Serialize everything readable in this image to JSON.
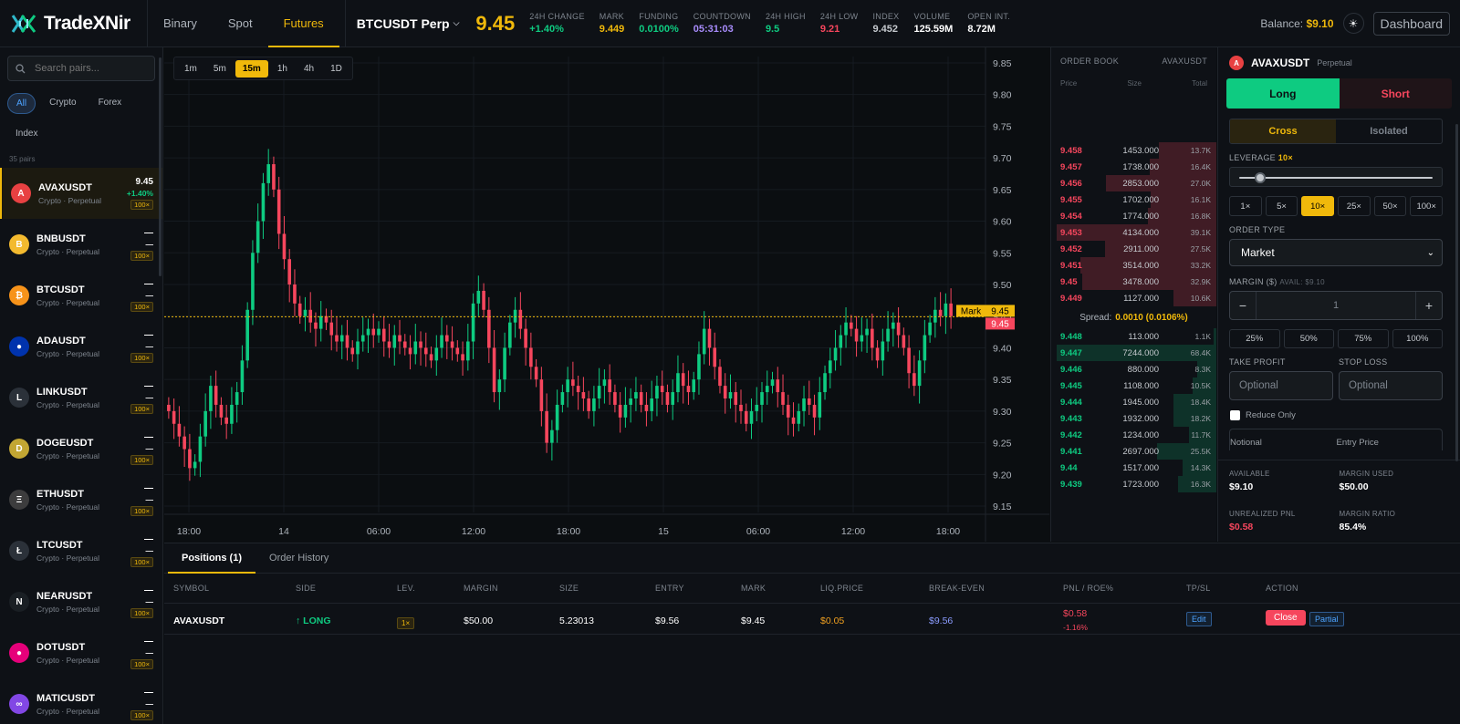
{
  "brand": {
    "name": "TradeXNir"
  },
  "nav": {
    "tabs": [
      {
        "label": "Binary"
      },
      {
        "label": "Spot"
      },
      {
        "label": "Futures"
      }
    ],
    "active": "Futures"
  },
  "ticker": {
    "pair": "BTCUSDT Perp",
    "price": "9.45",
    "stats": [
      {
        "key": "24H CHANGE",
        "value": "+1.40%",
        "color": "#0ecb81"
      },
      {
        "key": "MARK",
        "value": "9.449",
        "color": "#f0b90b"
      },
      {
        "key": "FUNDING",
        "value": "0.0100%",
        "color": "#0ecb81"
      },
      {
        "key": "COUNTDOWN",
        "value": "05:31:03",
        "color": "#a78bfa"
      },
      {
        "key": "24H HIGH",
        "value": "9.5",
        "color": "#0ecb81"
      },
      {
        "key": "24H LOW",
        "value": "9.21",
        "color": "#f6465d"
      },
      {
        "key": "INDEX",
        "value": "9.452",
        "color": "#c5c9ce"
      },
      {
        "key": "VOLUME",
        "value": "125.59M",
        "color": "#ffffff"
      },
      {
        "key": "OPEN INT.",
        "value": "8.72M",
        "color": "#ffffff"
      }
    ]
  },
  "account": {
    "balance_label": "Balance:",
    "balance": "$9.10",
    "dashboard": "Dashboard"
  },
  "sidebar": {
    "search_placeholder": "Search pairs...",
    "filters": [
      "All",
      "Crypto",
      "Forex",
      "Index"
    ],
    "count": "35 pairs",
    "pairs": [
      {
        "name": "AVAXUSDT",
        "sub": "Crypto · Perpetual",
        "price": "9.45",
        "change": "+1.40%",
        "lev": "100×",
        "icon": "avax-icon",
        "color": "#e84142",
        "glyph": "A"
      },
      {
        "name": "BNBUSDT",
        "sub": "Crypto · Perpetual",
        "price": "—",
        "change": "—",
        "lev": "100×",
        "icon": "bnb-icon",
        "color": "#f3ba2f",
        "glyph": "B"
      },
      {
        "name": "BTCUSDT",
        "sub": "Crypto · Perpetual",
        "price": "—",
        "change": "—",
        "lev": "100×",
        "icon": "btc-icon",
        "color": "#f7931a",
        "glyph": "₿"
      },
      {
        "name": "ADAUSDT",
        "sub": "Crypto · Perpetual",
        "price": "—",
        "change": "—",
        "lev": "100×",
        "icon": "ada-icon",
        "color": "#0033ad",
        "glyph": "●"
      },
      {
        "name": "LINKUSDT",
        "sub": "Crypto · Perpetual",
        "price": "—",
        "change": "—",
        "lev": "100×",
        "icon": "link-icon",
        "color": "#2b3139",
        "glyph": "L"
      },
      {
        "name": "DOGEUSDT",
        "sub": "Crypto · Perpetual",
        "price": "—",
        "change": "—",
        "lev": "100×",
        "icon": "doge-icon",
        "color": "#c2a633",
        "glyph": "D"
      },
      {
        "name": "ETHUSDT",
        "sub": "Crypto · Perpetual",
        "price": "—",
        "change": "—",
        "lev": "100×",
        "icon": "eth-icon",
        "color": "#3c3c3d",
        "glyph": "Ξ"
      },
      {
        "name": "LTCUSDT",
        "sub": "Crypto · Perpetual",
        "price": "—",
        "change": "—",
        "lev": "100×",
        "icon": "ltc-icon",
        "color": "#2b3139",
        "glyph": "Ł"
      },
      {
        "name": "NEARUSDT",
        "sub": "Crypto · Perpetual",
        "price": "—",
        "change": "—",
        "lev": "100×",
        "icon": "near-icon",
        "color": "#1a1f24",
        "glyph": "N"
      },
      {
        "name": "DOTUSDT",
        "sub": "Crypto · Perpetual",
        "price": "—",
        "change": "—",
        "lev": "100×",
        "icon": "dot-icon",
        "color": "#e6007a",
        "glyph": "●"
      },
      {
        "name": "MATICUSDT",
        "sub": "Crypto · Perpetual",
        "price": "—",
        "change": "—",
        "lev": "100×",
        "icon": "matic-icon",
        "color": "#8247e5",
        "glyph": "∞"
      }
    ]
  },
  "chart": {
    "timeframes": [
      "1m",
      "5m",
      "15m",
      "1h",
      "4h",
      "1D"
    ],
    "active_tf": "15m",
    "mark_label": "Mark",
    "mark_value": "9.45",
    "last_value": "9.45"
  },
  "chart_data": {
    "type": "candlestick",
    "y_ticks": [
      "9.85",
      "9.80",
      "9.75",
      "9.70",
      "9.65",
      "9.60",
      "9.55",
      "9.50",
      "9.45",
      "9.40",
      "9.35",
      "9.30",
      "9.25",
      "9.20",
      "9.15"
    ],
    "x_ticks": [
      "18:00",
      "14",
      "06:00",
      "12:00",
      "18:00",
      "15",
      "06:00",
      "12:00",
      "18:00"
    ],
    "ylim": [
      9.14,
      9.86
    ],
    "mark_price": 9.449,
    "up_color": "#0ecb81",
    "down_color": "#f6465d",
    "closes": [
      9.3,
      9.28,
      9.26,
      9.24,
      9.21,
      9.22,
      9.26,
      9.3,
      9.34,
      9.31,
      9.29,
      9.28,
      9.31,
      9.33,
      9.38,
      9.46,
      9.55,
      9.6,
      9.66,
      9.69,
      9.65,
      9.58,
      9.54,
      9.5,
      9.47,
      9.45,
      9.46,
      9.44,
      9.43,
      9.45,
      9.44,
      9.42,
      9.41,
      9.42,
      9.4,
      9.39,
      9.41,
      9.42,
      9.43,
      9.42,
      9.43,
      9.41,
      9.4,
      9.42,
      9.41,
      9.4,
      9.39,
      9.41,
      9.4,
      9.39,
      9.38,
      9.4,
      9.42,
      9.41,
      9.4,
      9.39,
      9.38,
      9.41,
      9.47,
      9.49,
      9.46,
      9.4,
      9.33,
      9.35,
      9.4,
      9.44,
      9.46,
      9.43,
      9.4,
      9.37,
      9.35,
      9.3,
      9.25,
      9.27,
      9.31,
      9.33,
      9.35,
      9.34,
      9.33,
      9.32,
      9.3,
      9.32,
      9.34,
      9.35,
      9.33,
      9.31,
      9.29,
      9.31,
      9.32,
      9.33,
      9.31,
      9.3,
      9.32,
      9.34,
      9.33,
      9.31,
      9.33,
      9.36,
      9.34,
      9.33,
      9.35,
      9.39,
      9.43,
      9.4,
      9.37,
      9.34,
      9.32,
      9.33,
      9.31,
      9.3,
      9.28,
      9.3,
      9.31,
      9.33,
      9.34,
      9.35,
      9.33,
      9.31,
      9.29,
      9.28,
      9.3,
      9.32,
      9.31,
      9.29,
      9.33,
      9.36,
      9.38,
      9.4,
      9.42,
      9.44,
      9.43,
      9.41,
      9.42,
      9.43,
      9.4,
      9.38,
      9.41,
      9.43,
      9.44,
      9.42,
      9.4,
      9.36,
      9.34,
      9.38,
      9.42,
      9.44,
      9.46,
      9.45,
      9.47,
      9.45
    ]
  },
  "orderbook": {
    "title": "ORDER BOOK",
    "pair": "AVAXUSDT",
    "cols": [
      "Price",
      "Size",
      "Total"
    ],
    "asks": [
      {
        "p": "9.458",
        "s": "1453.000",
        "t": "13.7K",
        "depth": 0.36
      },
      {
        "p": "9.457",
        "s": "1738.000",
        "t": "16.4K",
        "depth": 0.42
      },
      {
        "p": "9.456",
        "s": "2853.000",
        "t": "27.0K",
        "depth": 0.69
      },
      {
        "p": "9.455",
        "s": "1702.000",
        "t": "16.1K",
        "depth": 0.41
      },
      {
        "p": "9.454",
        "s": "1774.000",
        "t": "16.8K",
        "depth": 0.43
      },
      {
        "p": "9.453",
        "s": "4134.000",
        "t": "39.1K",
        "depth": 1.0
      },
      {
        "p": "9.452",
        "s": "2911.000",
        "t": "27.5K",
        "depth": 0.7
      },
      {
        "p": "9.451",
        "s": "3514.000",
        "t": "33.2K",
        "depth": 0.85
      },
      {
        "p": "9.45",
        "s": "3478.000",
        "t": "32.9K",
        "depth": 0.84
      },
      {
        "p": "9.449",
        "s": "1127.000",
        "t": "10.6K",
        "depth": 0.27
      }
    ],
    "spread_label": "Spread:",
    "spread": "0.0010 (0.0106%)",
    "bids": [
      {
        "p": "9.448",
        "s": "113.000",
        "t": "1.1K",
        "depth": 0.02
      },
      {
        "p": "9.447",
        "s": "7244.000",
        "t": "68.4K",
        "depth": 1.0
      },
      {
        "p": "9.446",
        "s": "880.000",
        "t": "8.3K",
        "depth": 0.12
      },
      {
        "p": "9.445",
        "s": "1108.000",
        "t": "10.5K",
        "depth": 0.15
      },
      {
        "p": "9.444",
        "s": "1945.000",
        "t": "18.4K",
        "depth": 0.27
      },
      {
        "p": "9.443",
        "s": "1932.000",
        "t": "18.2K",
        "depth": 0.27
      },
      {
        "p": "9.442",
        "s": "1234.000",
        "t": "11.7K",
        "depth": 0.17
      },
      {
        "p": "9.441",
        "s": "2697.000",
        "t": "25.5K",
        "depth": 0.37
      },
      {
        "p": "9.44",
        "s": "1517.000",
        "t": "14.3K",
        "depth": 0.21
      },
      {
        "p": "9.439",
        "s": "1723.000",
        "t": "16.3K",
        "depth": 0.24
      }
    ]
  },
  "trade": {
    "pair": "AVAXUSDT",
    "type": "Perpetual",
    "long": "Long",
    "short": "Short",
    "modes": [
      "Cross",
      "Isolated"
    ],
    "leverage_label": "LEVERAGE",
    "leverage_value": "10×",
    "leverage_fraction": 0.09,
    "levs": [
      "1×",
      "5×",
      "10×",
      "25×",
      "50×",
      "100×"
    ],
    "order_type_label": "ORDER TYPE",
    "order_type": "Market",
    "margin_label": "MARGIN ($)",
    "avail": "AVAIL: $9.10",
    "margin_value": "1",
    "pcts": [
      "25%",
      "50%",
      "75%",
      "100%"
    ],
    "tp_label": "TAKE PROFIT",
    "sl_label": "STOP LOSS",
    "tp_placeholder": "Optional",
    "sl_placeholder": "Optional",
    "reduce_only": "Reduce Only",
    "notional": "Notional",
    "entry_price": "Entry Price"
  },
  "accinfo": [
    {
      "k": "AVAILABLE",
      "v": "$9.10",
      "color": "#ffffff"
    },
    {
      "k": "MARGIN USED",
      "v": "$50.00",
      "color": "#ffffff"
    },
    {
      "k": "UNREALIZED PNL",
      "v": "$0.58",
      "color": "#f6465d"
    },
    {
      "k": "MARGIN RATIO",
      "v": "85.4%",
      "color": "#ffffff"
    }
  ],
  "positions": {
    "tabs": [
      "Positions (1)",
      "Order History"
    ],
    "headers": [
      "SYMBOL",
      "SIDE",
      "LEV.",
      "MARGIN",
      "SIZE",
      "ENTRY",
      "MARK",
      "LIQ.PRICE",
      "BREAK-EVEN",
      "PNL / ROE%",
      "TP/SL",
      "ACTION"
    ],
    "row": {
      "symbol": "AVAXUSDT",
      "side": "↑ LONG",
      "lev": "1×",
      "margin": "$50.00",
      "size": "5.23013",
      "entry": "$9.56",
      "mark": "$9.45",
      "liq": "$0.05",
      "breakeven": "$9.56",
      "pnl": "$0.58",
      "roe": "-1.16%",
      "edit": "Edit",
      "close": "Close",
      "partial": "Partial"
    }
  }
}
